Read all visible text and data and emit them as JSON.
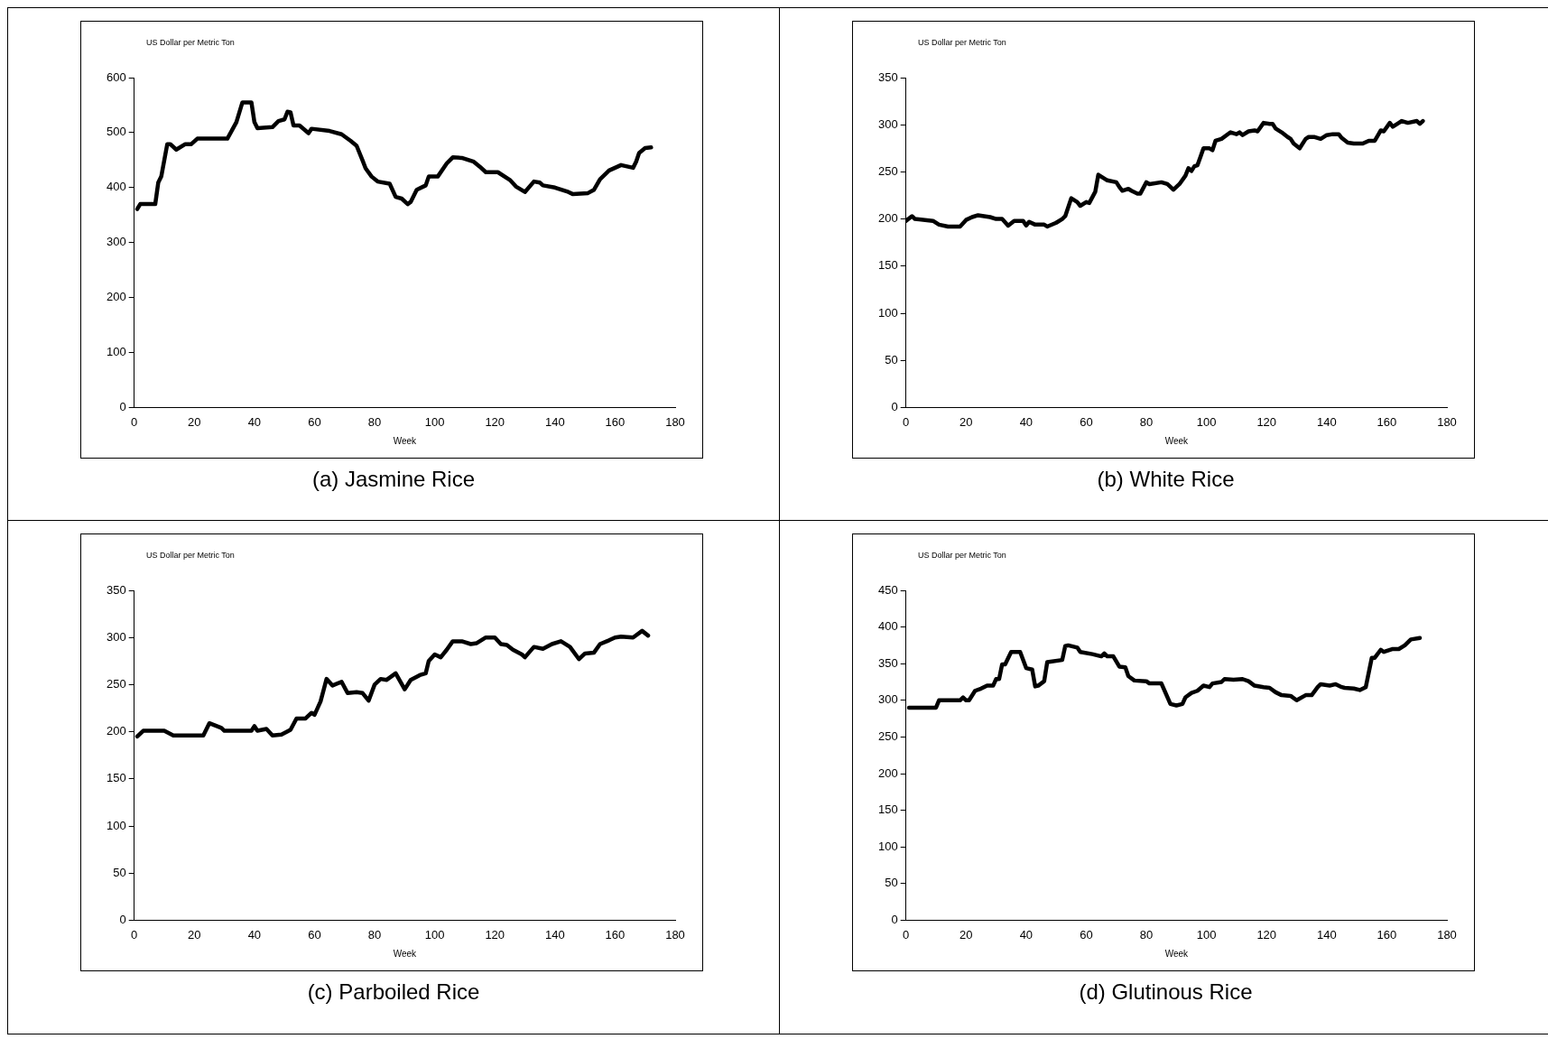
{
  "chart_data": [
    {
      "type": "line",
      "title": "(a) Jasmine Rice",
      "xlabel": "Week",
      "ylabel": "US Dollar per Metric Ton",
      "xlim": [
        0,
        180
      ],
      "xticks": [
        0,
        20,
        40,
        60,
        80,
        100,
        120,
        140,
        160,
        180
      ],
      "ylim": [
        0,
        600
      ],
      "yticks": [
        0,
        100,
        200,
        300,
        400,
        500,
        600
      ],
      "grid": false,
      "legend": false,
      "marker": "none",
      "line_style": "solid",
      "series": [
        {
          "color": "#000000",
          "x": [
            1,
            2,
            7,
            8,
            9,
            11,
            12,
            14,
            17,
            19,
            21,
            31,
            34,
            36,
            39,
            40,
            41,
            46,
            48,
            50,
            51,
            52,
            53,
            55,
            58,
            59,
            65,
            69,
            72,
            74,
            76,
            77,
            79,
            81,
            85,
            87,
            89,
            91,
            92,
            94,
            97,
            98,
            101,
            104,
            106,
            109,
            113,
            115,
            117,
            121,
            125,
            127,
            130,
            133,
            135,
            136,
            140,
            144,
            146,
            151,
            153,
            155,
            158,
            162,
            166,
            167,
            168,
            170,
            172
          ],
          "values": [
            361,
            370,
            370,
            409,
            420,
            479,
            479,
            469,
            479,
            479,
            489,
            489,
            519,
            555,
            555,
            519,
            508,
            510,
            521,
            524,
            538,
            537,
            513,
            513,
            499,
            507,
            503,
            497,
            485,
            476,
            449,
            435,
            420,
            411,
            407,
            383,
            380,
            370,
            374,
            396,
            404,
            420,
            420,
            444,
            455,
            454,
            447,
            438,
            428,
            428,
            414,
            402,
            392,
            411,
            409,
            404,
            400,
            393,
            388,
            390,
            396,
            415,
            431,
            441,
            436,
            447,
            463,
            472,
            473
          ]
        }
      ]
    },
    {
      "type": "line",
      "title": "(b) White Rice",
      "xlabel": "Week",
      "ylabel": "US Dollar per Metric Ton",
      "xlim": [
        0,
        180
      ],
      "xticks": [
        0,
        20,
        40,
        60,
        80,
        100,
        120,
        140,
        160,
        180
      ],
      "ylim": [
        0,
        350
      ],
      "yticks": [
        0,
        50,
        100,
        150,
        200,
        250,
        300,
        350
      ],
      "grid": false,
      "legend": false,
      "marker": "none",
      "line_style": "solid",
      "series": [
        {
          "color": "#000000",
          "x": [
            0,
            2,
            3,
            9,
            11,
            14,
            18,
            20,
            22,
            24,
            28,
            30,
            32,
            34,
            36,
            39,
            40,
            41,
            43,
            46,
            47,
            50,
            52,
            53,
            55,
            57,
            58,
            60,
            61,
            63,
            64,
            67,
            70,
            71,
            72,
            74,
            75,
            77,
            78,
            80,
            81,
            85,
            87,
            89,
            91,
            93,
            94,
            95,
            96,
            97,
            98,
            99,
            101,
            102,
            103,
            105,
            108,
            110,
            111,
            112,
            114,
            116,
            117,
            119,
            121,
            122,
            123,
            125,
            127,
            128,
            129,
            131,
            133,
            134,
            136,
            138,
            140,
            142,
            144,
            145,
            147,
            149,
            152,
            154,
            156,
            158,
            159,
            161,
            162,
            164,
            165,
            167,
            170,
            171,
            172
          ],
          "values": [
            198,
            203,
            200,
            198,
            194,
            192,
            192,
            199,
            202,
            204,
            202,
            200,
            200,
            193,
            198,
            198,
            193,
            197,
            194,
            194,
            192,
            196,
            200,
            203,
            222,
            218,
            214,
            218,
            217,
            229,
            247,
            241,
            239,
            234,
            230,
            232,
            230,
            227,
            227,
            239,
            237,
            239,
            237,
            231,
            237,
            246,
            254,
            251,
            256,
            257,
            266,
            275,
            275,
            273,
            283,
            285,
            292,
            290,
            292,
            289,
            293,
            294,
            293,
            302,
            301,
            301,
            296,
            292,
            287,
            285,
            280,
            275,
            285,
            287,
            287,
            285,
            289,
            290,
            290,
            286,
            281,
            280,
            280,
            283,
            283,
            294,
            293,
            302,
            298,
            302,
            304,
            302,
            304,
            301,
            304
          ]
        }
      ]
    },
    {
      "type": "line",
      "title": "(c) Parboiled Rice",
      "xlabel": "Week",
      "ylabel": "US Dollar per Metric Ton",
      "xlim": [
        0,
        180
      ],
      "xticks": [
        0,
        20,
        40,
        60,
        80,
        100,
        120,
        140,
        160,
        180
      ],
      "ylim": [
        0,
        350
      ],
      "yticks": [
        0,
        50,
        100,
        150,
        200,
        250,
        300,
        350
      ],
      "grid": false,
      "legend": false,
      "marker": "none",
      "line_style": "solid",
      "series": [
        {
          "color": "#000000",
          "x": [
            1,
            3,
            10,
            13,
            23,
            25,
            29,
            30,
            39,
            40,
            41,
            44,
            46,
            49,
            52,
            54,
            57,
            59,
            60,
            62,
            64,
            66,
            69,
            71,
            74,
            76,
            78,
            80,
            82,
            84,
            87,
            90,
            92,
            95,
            97,
            98,
            100,
            102,
            104,
            106,
            109,
            112,
            114,
            117,
            120,
            122,
            124,
            126,
            129,
            130,
            133,
            136,
            139,
            142,
            145,
            148,
            150,
            153,
            155,
            158,
            160,
            162,
            166,
            169,
            171
          ],
          "values": [
            195,
            201,
            201,
            196,
            196,
            209,
            204,
            201,
            201,
            206,
            201,
            203,
            196,
            197,
            202,
            214,
            214,
            220,
            218,
            232,
            256,
            249,
            253,
            241,
            242,
            241,
            233,
            250,
            256,
            255,
            262,
            245,
            255,
            260,
            262,
            275,
            282,
            279,
            287,
            296,
            296,
            293,
            294,
            300,
            300,
            293,
            292,
            287,
            282,
            279,
            290,
            288,
            293,
            296,
            290,
            277,
            283,
            284,
            293,
            297,
            300,
            301,
            300,
            307,
            302
          ]
        }
      ]
    },
    {
      "type": "line",
      "title": "(d) Glutinous Rice",
      "xlabel": "Week",
      "ylabel": "US Dollar per Metric Ton",
      "xlim": [
        0,
        180
      ],
      "xticks": [
        0,
        20,
        40,
        60,
        80,
        100,
        120,
        140,
        160,
        180
      ],
      "ylim": [
        0,
        450
      ],
      "yticks": [
        0,
        50,
        100,
        150,
        200,
        250,
        300,
        350,
        400,
        450
      ],
      "grid": false,
      "legend": false,
      "marker": "none",
      "line_style": "solid",
      "series": [
        {
          "color": "#000000",
          "x": [
            1,
            10,
            11,
            18,
            19,
            20,
            21,
            23,
            25,
            27,
            29,
            30,
            31,
            32,
            33,
            35,
            38,
            40,
            42,
            43,
            44,
            46,
            47,
            52,
            53,
            54,
            57,
            58,
            62,
            65,
            66,
            67,
            69,
            71,
            73,
            74,
            76,
            80,
            81,
            85,
            88,
            90,
            92,
            93,
            95,
            97,
            99,
            101,
            102,
            105,
            106,
            109,
            112,
            114,
            116,
            119,
            121,
            123,
            125,
            128,
            130,
            133,
            135,
            137,
            138,
            141,
            143,
            145,
            146,
            149,
            151,
            153,
            155,
            156,
            158,
            159,
            162,
            164,
            166,
            168,
            171
          ],
          "values": [
            290,
            290,
            300,
            300,
            304,
            300,
            300,
            313,
            316,
            320,
            320,
            329,
            329,
            349,
            349,
            366,
            366,
            344,
            342,
            319,
            320,
            326,
            352,
            355,
            374,
            375,
            372,
            366,
            363,
            360,
            364,
            360,
            360,
            346,
            345,
            333,
            327,
            326,
            323,
            323,
            295,
            293,
            295,
            304,
            310,
            313,
            320,
            318,
            323,
            325,
            329,
            328,
            329,
            326,
            320,
            318,
            317,
            311,
            307,
            306,
            300,
            307,
            307,
            318,
            322,
            320,
            322,
            318,
            317,
            316,
            314,
            318,
            358,
            358,
            369,
            366,
            370,
            370,
            375,
            383,
            385
          ]
        }
      ]
    }
  ]
}
